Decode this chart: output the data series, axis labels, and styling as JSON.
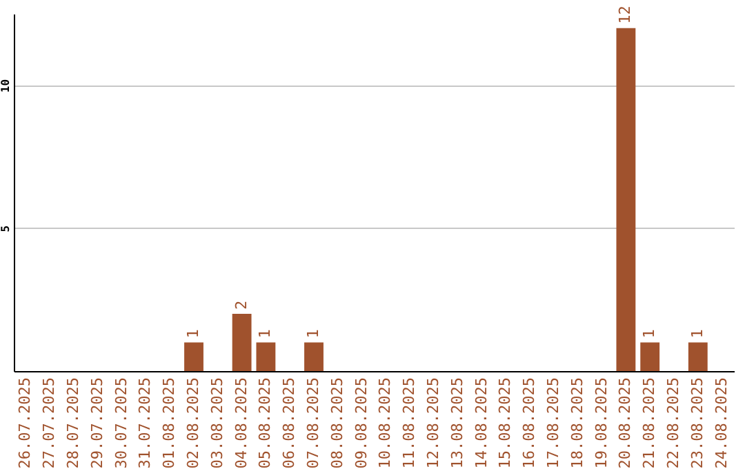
{
  "chart_data": {
    "type": "bar",
    "categories": [
      "26.07.2025",
      "27.07.2025",
      "28.07.2025",
      "29.07.2025",
      "30.07.2025",
      "31.07.2025",
      "01.08.2025",
      "02.08.2025",
      "03.08.2025",
      "04.08.2025",
      "05.08.2025",
      "06.08.2025",
      "07.08.2025",
      "08.08.2025",
      "09.08.2025",
      "10.08.2025",
      "11.08.2025",
      "12.08.2025",
      "13.08.2025",
      "14.08.2025",
      "15.08.2025",
      "16.08.2025",
      "17.08.2025",
      "18.08.2025",
      "19.08.2025",
      "20.08.2025",
      "21.08.2025",
      "22.08.2025",
      "23.08.2025",
      "24.08.2025"
    ],
    "values": [
      0,
      0,
      0,
      0,
      0,
      0,
      0,
      1,
      0,
      2,
      1,
      0,
      1,
      0,
      0,
      0,
      0,
      0,
      0,
      0,
      0,
      0,
      0,
      0,
      0,
      12,
      1,
      0,
      1,
      0
    ],
    "value_labels": [
      null,
      null,
      null,
      null,
      null,
      null,
      null,
      "1",
      null,
      "2",
      "1",
      null,
      "1",
      null,
      null,
      null,
      null,
      null,
      null,
      null,
      null,
      null,
      null,
      null,
      null,
      "12",
      "1",
      null,
      "1",
      null
    ],
    "color": "#a0522d",
    "ylim": [
      0,
      12.5
    ],
    "yticks": [
      5,
      10
    ],
    "grid": "y"
  }
}
